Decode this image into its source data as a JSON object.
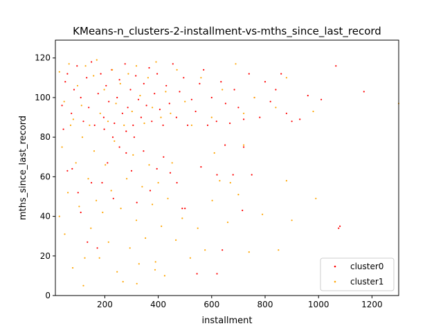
{
  "chart_data": {
    "type": "scatter",
    "title": "KMeans-n_clusters-2-installment-vs-mths_since_last_record",
    "xlabel": "installment",
    "ylabel": "mths_since_last_record",
    "xlim": [
      15,
      1300
    ],
    "ylim": [
      0,
      129
    ],
    "x_ticks": [
      200,
      400,
      600,
      800,
      1000,
      1200
    ],
    "y_ticks": [
      0,
      20,
      40,
      60,
      80,
      100,
      120
    ],
    "grid": false,
    "legend_position": "lower-right",
    "series": [
      {
        "name": "cluster0",
        "color": "#ff0000",
        "points": [
          [
            40,
            96
          ],
          [
            52,
            108
          ],
          [
            60,
            112
          ],
          [
            75,
            92
          ],
          [
            85,
            104
          ],
          [
            96,
            116
          ],
          [
            110,
            100
          ],
          [
            120,
            88
          ],
          [
            132,
            110
          ],
          [
            140,
            95
          ],
          [
            150,
            118
          ],
          [
            162,
            86
          ],
          [
            175,
            102
          ],
          [
            185,
            112
          ],
          [
            196,
            90
          ],
          [
            205,
            106
          ],
          [
            215,
            98
          ],
          [
            226,
            114
          ],
          [
            236,
            87
          ],
          [
            246,
            100
          ],
          [
            255,
            109
          ],
          [
            266,
            92
          ],
          [
            276,
            117
          ],
          [
            286,
            95
          ],
          [
            296,
            104
          ],
          [
            306,
            86
          ],
          [
            316,
            111
          ],
          [
            326,
            99
          ],
          [
            336,
            90
          ],
          [
            346,
            107
          ],
          [
            356,
            96
          ],
          [
            366,
            115
          ],
          [
            376,
            88
          ],
          [
            386,
            102
          ],
          [
            396,
            112
          ],
          [
            406,
            94
          ],
          [
            418,
            86
          ],
          [
            430,
            106
          ],
          [
            442,
            97
          ],
          [
            455,
            117
          ],
          [
            468,
            90
          ],
          [
            480,
            103
          ],
          [
            495,
            110
          ],
          [
            510,
            86
          ],
          [
            525,
            99
          ],
          [
            540,
            93
          ],
          [
            555,
            107
          ],
          [
            570,
            114
          ],
          [
            585,
            86
          ],
          [
            600,
            100
          ],
          [
            618,
            88
          ],
          [
            635,
            108
          ],
          [
            652,
            97
          ],
          [
            668,
            87
          ],
          [
            685,
            104
          ],
          [
            700,
            95
          ],
          [
            720,
            89
          ],
          [
            740,
            112
          ],
          [
            760,
            100
          ],
          [
            780,
            90
          ],
          [
            800,
            108
          ],
          [
            820,
            98
          ],
          [
            840,
            104
          ],
          [
            860,
            112
          ],
          [
            880,
            92
          ],
          [
            900,
            88
          ],
          [
            930,
            89
          ],
          [
            960,
            101
          ],
          [
            1010,
            99
          ],
          [
            1065,
            116
          ],
          [
            1170,
            103
          ],
          [
            1080,
            35
          ],
          [
            1075,
            34
          ],
          [
            640,
            23
          ],
          [
            620,
            11
          ],
          [
            545,
            11
          ],
          [
            500,
            44
          ],
          [
            490,
            44
          ],
          [
            560,
            65
          ],
          [
            620,
            61
          ],
          [
            680,
            61
          ],
          [
            715,
            43
          ],
          [
            720,
            75
          ],
          [
            750,
            61
          ],
          [
            650,
            76
          ],
          [
            45,
            84
          ],
          [
            60,
            63
          ],
          [
            78,
            64
          ],
          [
            100,
            52
          ],
          [
            110,
            42
          ],
          [
            135,
            27
          ],
          [
            150,
            57
          ],
          [
            172,
            24
          ],
          [
            190,
            57
          ],
          [
            210,
            67
          ],
          [
            232,
            49
          ],
          [
            255,
            75
          ],
          [
            280,
            72
          ],
          [
            300,
            63
          ],
          [
            320,
            47
          ],
          [
            345,
            73
          ],
          [
            370,
            53
          ],
          [
            395,
            64
          ],
          [
            420,
            70
          ],
          [
            445,
            62
          ],
          [
            470,
            57
          ],
          [
            310,
            80
          ],
          [
            280,
            83
          ],
          [
            230,
            80
          ],
          [
            198,
            84
          ]
        ]
      },
      {
        "name": "cluster1",
        "color": "#ffa500",
        "points": [
          [
            30,
            113
          ],
          [
            48,
            98
          ],
          [
            66,
            117
          ],
          [
            82,
            89
          ],
          [
            98,
            106
          ],
          [
            113,
            96
          ],
          [
            128,
            116
          ],
          [
            143,
            86
          ],
          [
            158,
            111
          ],
          [
            170,
            119
          ],
          [
            183,
            92
          ],
          [
            198,
            104
          ],
          [
            212,
            88
          ],
          [
            228,
            114
          ],
          [
            242,
            97
          ],
          [
            258,
            107
          ],
          [
            272,
            86
          ],
          [
            288,
            112
          ],
          [
            302,
            93
          ],
          [
            318,
            116
          ],
          [
            332,
            101
          ],
          [
            348,
            87
          ],
          [
            362,
            110
          ],
          [
            378,
            95
          ],
          [
            392,
            118
          ],
          [
            410,
            90
          ],
          [
            428,
            103
          ],
          [
            446,
            92
          ],
          [
            470,
            114
          ],
          [
            500,
            98
          ],
          [
            525,
            86
          ],
          [
            560,
            110
          ],
          [
            600,
            90
          ],
          [
            640,
            104
          ],
          [
            690,
            117
          ],
          [
            720,
            92
          ],
          [
            760,
            100
          ],
          [
            840,
            95
          ],
          [
            880,
            110
          ],
          [
            980,
            93
          ],
          [
            1300,
            97
          ],
          [
            30,
            40
          ],
          [
            40,
            75
          ],
          [
            50,
            31
          ],
          [
            62,
            52
          ],
          [
            72,
            86
          ],
          [
            80,
            14
          ],
          [
            92,
            67
          ],
          [
            104,
            45
          ],
          [
            116,
            80
          ],
          [
            125,
            19
          ],
          [
            138,
            59
          ],
          [
            148,
            34
          ],
          [
            160,
            73
          ],
          [
            168,
            48
          ],
          [
            180,
            19
          ],
          [
            192,
            42
          ],
          [
            202,
            66
          ],
          [
            214,
            27
          ],
          [
            224,
            53
          ],
          [
            236,
            78
          ],
          [
            246,
            12
          ],
          [
            260,
            44
          ],
          [
            268,
            7
          ],
          [
            282,
            59
          ],
          [
            294,
            24
          ],
          [
            306,
            71
          ],
          [
            318,
            38
          ],
          [
            328,
            16
          ],
          [
            340,
            55
          ],
          [
            352,
            29
          ],
          [
            366,
            66
          ],
          [
            378,
            46
          ],
          [
            388,
            13
          ],
          [
            400,
            57
          ],
          [
            412,
            35
          ],
          [
            424,
            10
          ],
          [
            436,
            49
          ],
          [
            452,
            67
          ],
          [
            466,
            28
          ],
          [
            490,
            39
          ],
          [
            520,
            19
          ],
          [
            548,
            34
          ],
          [
            575,
            23
          ],
          [
            602,
            48
          ],
          [
            630,
            58
          ],
          [
            660,
            37
          ],
          [
            700,
            51
          ],
          [
            740,
            22
          ],
          [
            790,
            41
          ],
          [
            850,
            23
          ],
          [
            880,
            58
          ],
          [
            900,
            38
          ],
          [
            990,
            49
          ],
          [
            120,
            5
          ],
          [
            320,
            6
          ],
          [
            390,
            17
          ],
          [
            610,
            72
          ],
          [
            670,
            57
          ],
          [
            720,
            76
          ]
        ]
      }
    ]
  }
}
